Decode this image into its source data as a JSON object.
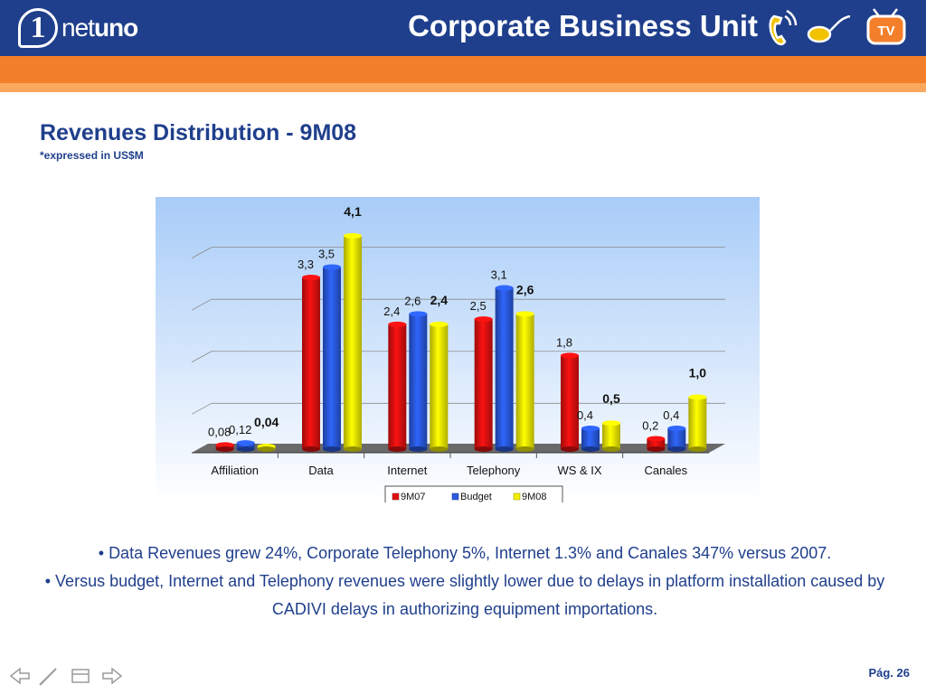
{
  "header": {
    "logo_number": "1",
    "logo_text_light": "net",
    "logo_text_bold": "uno",
    "title": "Corporate Business Unit",
    "tv_label": "TV"
  },
  "slide": {
    "title": "Revenues Distribution -  9M08",
    "subtitle": "*expressed in US$M"
  },
  "chart_data": {
    "type": "bar",
    "categories": [
      "Affiliation",
      "Data",
      "Internet",
      "Telephony",
      "WS & IX",
      "Canales"
    ],
    "series": [
      {
        "name": "9M07",
        "color": "#e01010",
        "values": [
          0.08,
          3.3,
          2.4,
          2.5,
          1.8,
          0.2
        ],
        "labels": [
          "0,08",
          "3,3",
          "2,4",
          "2,5",
          "1,8",
          "0,2"
        ],
        "label_bold": false
      },
      {
        "name": "Budget",
        "color": "#2a5ae0",
        "values": [
          0.12,
          3.5,
          2.6,
          3.1,
          0.4,
          0.4
        ],
        "labels": [
          "0,12",
          "3,5",
          "2,6",
          "3,1",
          "0,4",
          "0,4"
        ],
        "label_bold": false
      },
      {
        "name": "9M08",
        "color": "#f4f000",
        "values": [
          0.04,
          4.1,
          2.4,
          2.6,
          0.5,
          1.0
        ],
        "labels": [
          "0,04",
          "4,1",
          "2,4",
          "2,6",
          "0,5",
          "1,0"
        ],
        "label_bold": true
      }
    ],
    "ylim": [
      0,
      4.1
    ],
    "grid": true,
    "legend_position": "bottom"
  },
  "bullets": [
    "Data Revenues grew 24%, Corporate Telephony 5%, Internet 1.3% and Canales 347%  versus 2007.",
    "Versus budget, Internet and Telephony revenues were slightly lower due to delays in platform installation caused by CADIVI delays in authorizing equipment importations."
  ],
  "footer": {
    "page_label": "Pág. 26"
  }
}
